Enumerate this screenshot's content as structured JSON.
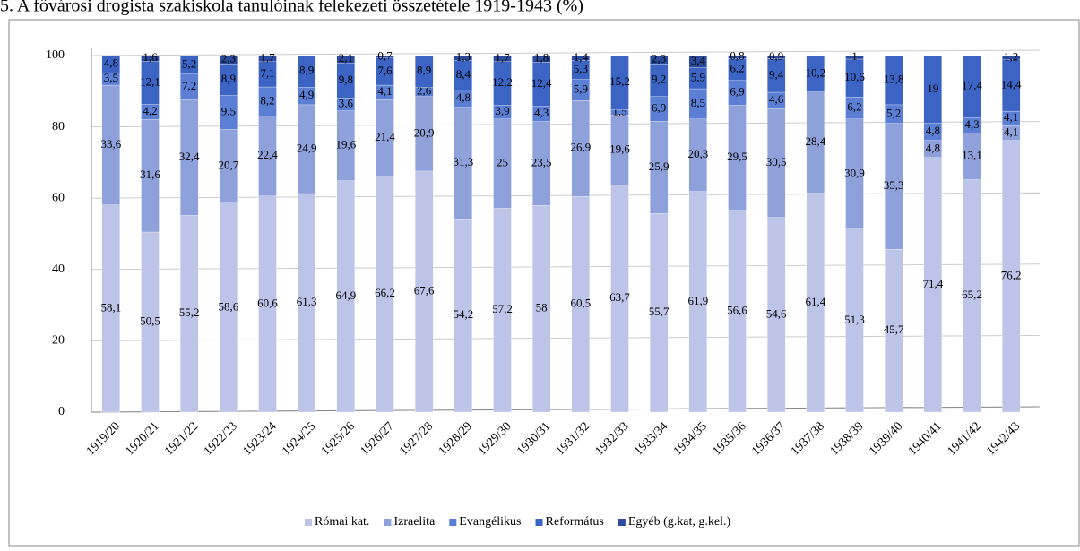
{
  "chart_data": {
    "type": "stacked-bar",
    "title": "5. A fővárosi drogista szakiskola tanulóinak felekezeti összetétele 1919-1943 (%)",
    "categories": [
      "1919/20",
      "1920/21",
      "1921/22",
      "1922/23",
      "1923/24",
      "1924/25",
      "1925/26",
      "1926/27",
      "1927/28",
      "1928/29",
      "1929/30",
      "1930/31",
      "1931/32",
      "1932/33",
      "1933/34",
      "1934/35",
      "1935/36",
      "1936/37",
      "1937/38",
      "1938/39",
      "1939/40",
      "1940/41",
      "1941/42",
      "1942/43"
    ],
    "series": [
      {
        "name": "Római kat.",
        "color": "#bcc4e8",
        "values": [
          58.1,
          50.5,
          55.2,
          58.6,
          60.6,
          61.3,
          64.9,
          66.2,
          67.6,
          54.2,
          57.2,
          58,
          60.5,
          63.7,
          55.7,
          61.9,
          56.6,
          54.6,
          61.4,
          51.3,
          45.7,
          71.4,
          65.2,
          76.2
        ],
        "value_labels": [
          "58,1",
          "50,5",
          "55,2",
          "58,6",
          "60,6",
          "61,3",
          "64,9",
          "66,2",
          "67,6",
          "54,2",
          "57,2",
          "58",
          "60,5",
          "63,7",
          "55,7",
          "61,9",
          "56,6",
          "54,6",
          "61,4",
          "51,3",
          "45,7",
          "71,4",
          "65,2",
          "76,2"
        ]
      },
      {
        "name": "Izraelita",
        "color": "#8fa1da",
        "values": [
          33.6,
          31.6,
          32.4,
          20.7,
          22.4,
          24.9,
          19.6,
          21.4,
          20.9,
          31.3,
          25,
          23.5,
          26.9,
          19.6,
          25.9,
          20.3,
          29.5,
          30.5,
          28.4,
          30.9,
          35.3,
          4.8,
          13.1,
          4.1
        ],
        "value_labels": [
          "33,6",
          "31,6",
          "32,4",
          "20,7",
          "22,4",
          "24,9",
          "19,6",
          "21,4",
          "20,9",
          "31,3",
          "25",
          "23,5",
          "26,9",
          "19,6",
          "25,9",
          "20,3",
          "29,5",
          "30,5",
          "28,4",
          "30,9",
          "35,3",
          "4,8",
          "13,1",
          "4,1"
        ]
      },
      {
        "name": "Evangélikus",
        "color": "#5c7fd6",
        "values": [
          3.5,
          4.2,
          7.2,
          9.5,
          8.2,
          4.9,
          3.6,
          4.1,
          2.6,
          4.8,
          3.9,
          4.3,
          5.9,
          1.5,
          6.9,
          8.5,
          6.9,
          4.6,
          null,
          6.2,
          5.2,
          4.8,
          4.3,
          4.1
        ],
        "value_labels": [
          "3,5",
          "4,2",
          "7,2",
          "9,5",
          "8,2",
          "4,9",
          "3,6",
          "4,1",
          "2,6",
          "4,8",
          "3,9",
          "4,3",
          "5,9",
          "1,5",
          "6,9",
          "8,5",
          "6,9",
          "4,6",
          null,
          "6,2",
          "5,2",
          "4,8",
          "4,3",
          "4,1"
        ]
      },
      {
        "name": "Református",
        "color": "#3c64c4",
        "values": [
          4.8,
          12.1,
          5.2,
          8.9,
          7.1,
          8.9,
          9.8,
          7.6,
          8.9,
          8.4,
          12.2,
          12.4,
          5.3,
          15.2,
          9.2,
          5.9,
          6.2,
          9.4,
          10.2,
          10.6,
          13.8,
          19,
          17.4,
          14.4
        ],
        "value_labels": [
          "4,8",
          "12,1",
          "5,2",
          "8,9",
          "7,1",
          "8,9",
          "9,8",
          "7,6",
          "8,9",
          "8,4",
          "12,2",
          "12,4",
          "5,3",
          "15,2",
          "9,2",
          "5,9",
          "6,2",
          "9,4",
          "10,2",
          "10,6",
          "13,8",
          "19",
          "17,4",
          "14,4"
        ]
      },
      {
        "name": "Egyéb (g.kat, g.kel.)",
        "color": "#2b4c9e",
        "values": [
          null,
          1.6,
          null,
          2.3,
          1.7,
          null,
          2.1,
          0.7,
          null,
          1.3,
          1.7,
          1.8,
          1.4,
          null,
          2.3,
          3.4,
          0.8,
          0.9,
          null,
          1,
          null,
          null,
          null,
          1.2
        ],
        "value_labels": [
          null,
          "1,6",
          null,
          "2,3",
          "1,7",
          null,
          "2,1",
          "0,7",
          null,
          "1,3",
          "1,7",
          "1,8",
          "1,4",
          null,
          "2,3",
          "3,4",
          "0,8",
          "0,9",
          null,
          "1",
          null,
          null,
          null,
          "1,2"
        ]
      }
    ],
    "ylim": [
      0,
      100
    ],
    "yticks": [
      0,
      20,
      40,
      60,
      80,
      100
    ],
    "grid": true,
    "legend": "bottom"
  }
}
